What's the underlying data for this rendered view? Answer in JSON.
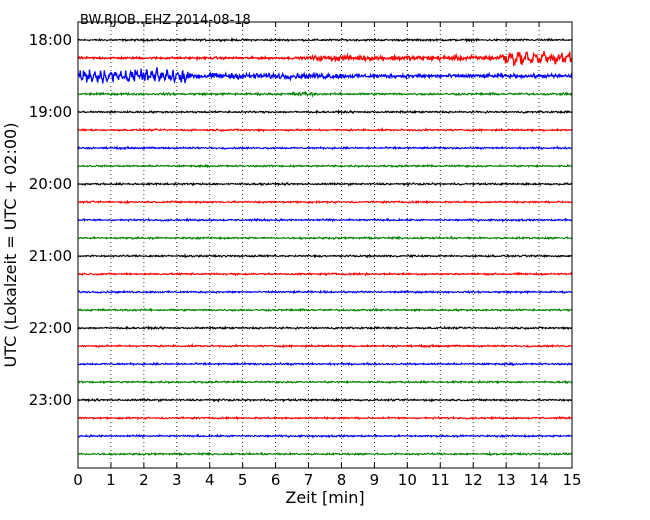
{
  "chart_data": {
    "type": "line",
    "title": "BW.RJOB..EHZ 2014-08-18",
    "xlabel": "Zeit  [min]",
    "ylabel": "UTC (Lokalzeit = UTC + 02:00)",
    "xlim": [
      0,
      15
    ],
    "x_ticks": [
      "0",
      "1",
      "2",
      "3",
      "4",
      "5",
      "6",
      "7",
      "8",
      "9",
      "10",
      "11",
      "12",
      "13",
      "14",
      "15"
    ],
    "y_hour_labels": [
      "18:00",
      "19:00",
      "20:00",
      "21:00",
      "22:00",
      "23:00"
    ],
    "trace_count": 24,
    "trace_interval_min": 15,
    "first_trace_start": "18:00",
    "colors": [
      "#000000",
      "#ff0000",
      "#0000ff",
      "#008000"
    ],
    "grid": "vertical dotted at each minute",
    "legend": "none"
  }
}
